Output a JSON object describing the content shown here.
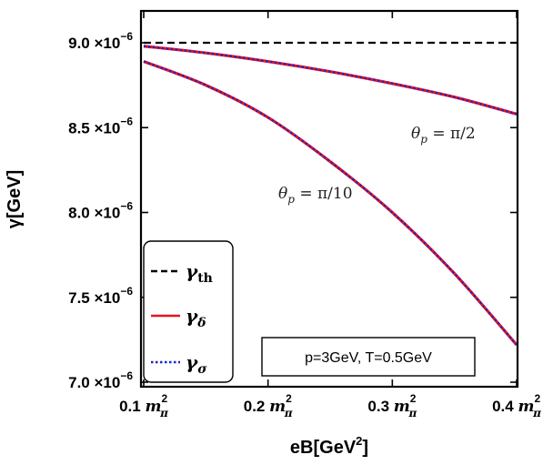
{
  "chart_data": {
    "type": "line",
    "xlabel": "eB[GeV",
    "xlabel_sup": "2",
    "xlabel_close": "]",
    "ylabel": "γ[GeV]",
    "xlim": [
      0.1,
      0.4
    ],
    "ylim": [
      7e-06,
      9.2e-06
    ],
    "x_ticks": [
      {
        "value": 0.1,
        "num": "0.1",
        "unit": "m",
        "sup": "2",
        "sub": "π"
      },
      {
        "value": 0.2,
        "num": "0.2",
        "unit": "m",
        "sup": "2",
        "sub": "π"
      },
      {
        "value": 0.3,
        "num": "0.3",
        "unit": "m",
        "sup": "2",
        "sub": "π"
      },
      {
        "value": 0.4,
        "num": "0.4",
        "unit": "m",
        "sup": "2",
        "sub": "π"
      }
    ],
    "y_ticks": [
      {
        "value": 7e-06,
        "mantissa": "7.0",
        "times": "×10",
        "exp": "−6"
      },
      {
        "value": 7.5e-06,
        "mantissa": "7.5",
        "times": "×10",
        "exp": "−6"
      },
      {
        "value": 8e-06,
        "mantissa": "8.0",
        "times": "×10",
        "exp": "−6"
      },
      {
        "value": 8.5e-06,
        "mantissa": "8.5",
        "times": "×10",
        "exp": "−6"
      },
      {
        "value": 9e-06,
        "mantissa": "9.0",
        "times": "×10",
        "exp": "−6"
      }
    ],
    "x": [
      0.1,
      0.15,
      0.2,
      0.25,
      0.3,
      0.35,
      0.4
    ],
    "series": [
      {
        "name": "γth",
        "curve": "th",
        "style": "dashed",
        "color": "#000000",
        "values": [
          9e-06,
          9e-06,
          9e-06,
          9e-06,
          9e-06,
          9e-06,
          9e-06
        ]
      },
      {
        "name": "γδ",
        "curve": "pi2",
        "style": "solid",
        "color": "#e8141c",
        "values": [
          8.98e-06,
          8.94e-06,
          8.89e-06,
          8.83e-06,
          8.76e-06,
          8.68e-06,
          8.58e-06
        ]
      },
      {
        "name": "γσ",
        "curve": "pi2",
        "style": "dotted",
        "color": "#1a23d6",
        "values": [
          8.98e-06,
          8.94e-06,
          8.89e-06,
          8.83e-06,
          8.76e-06,
          8.68e-06,
          8.58e-06
        ]
      },
      {
        "name": "γδ",
        "curve": "pi10",
        "style": "solid",
        "color": "#e8141c",
        "values": [
          8.89e-06,
          8.75e-06,
          8.56e-06,
          8.3e-06,
          8e-06,
          7.64e-06,
          7.22e-06
        ]
      },
      {
        "name": "γσ",
        "curve": "pi10",
        "style": "dotted",
        "color": "#1a23d6",
        "values": [
          8.89e-06,
          8.75e-06,
          8.56e-06,
          8.3e-06,
          8e-06,
          7.64e-06,
          7.22e-06
        ]
      }
    ],
    "legend": {
      "placement": "bottom-left",
      "entries": [
        {
          "symbol": "γ",
          "sub": "th",
          "style": "dashed",
          "color": "#000000"
        },
        {
          "symbol": "γ",
          "sub": "δ",
          "style": "solid",
          "color": "#e8141c"
        },
        {
          "symbol": "γ",
          "sub": "σ",
          "style": "dotted",
          "color": "#1a23d6"
        }
      ]
    },
    "annotations": [
      {
        "theta": "θ",
        "sub": "p",
        "rest": " = π/2"
      },
      {
        "theta": "θ",
        "sub": "p",
        "rest": " = π/10"
      }
    ],
    "param_box": "p=3GeV, T=0.5GeV",
    "grid": false
  }
}
